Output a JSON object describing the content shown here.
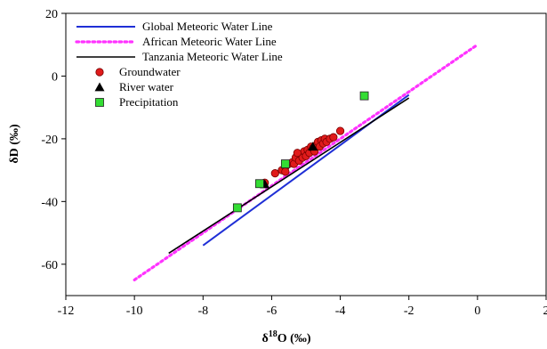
{
  "chart_data": {
    "type": "scatter",
    "xlabel_prefix": "δ",
    "xlabel_sup": "18",
    "xlabel_suffix": "O (‰)",
    "ylabel": "δD (‰)",
    "xlim": [
      -12,
      2
    ],
    "ylim": [
      -70,
      20
    ],
    "xticks": [
      -12,
      -10,
      -8,
      -6,
      -4,
      -2,
      0,
      2
    ],
    "yticks": [
      20,
      0,
      -20,
      -40,
      -60
    ],
    "grid": false,
    "legend_position": "top-left",
    "lines": [
      {
        "name": "Global Meteoric Water Line",
        "color": "#1f2fd6",
        "style": "solid",
        "x": [
          -8,
          -2
        ],
        "y": [
          -54,
          -6
        ]
      },
      {
        "name": "African Meteoric Water Line",
        "color": "#ff33ff",
        "style": "dotted",
        "x": [
          -10,
          0
        ],
        "y": [
          -65,
          10
        ]
      },
      {
        "name": "Tanzania Meteoric Water Line",
        "color": "#000000",
        "style": "solid",
        "x": [
          -9,
          -2
        ],
        "y": [
          -56.5,
          -7
        ]
      }
    ],
    "scatter": [
      {
        "name": "Groundwater",
        "marker": "circle",
        "color": "#e01b1b",
        "points": [
          [
            -6.2,
            -34
          ],
          [
            -5.9,
            -31
          ],
          [
            -5.7,
            -30
          ],
          [
            -5.6,
            -29
          ],
          [
            -5.5,
            -28
          ],
          [
            -5.4,
            -27.5
          ],
          [
            -5.35,
            -28
          ],
          [
            -5.3,
            -26
          ],
          [
            -5.2,
            -27
          ],
          [
            -5.15,
            -25
          ],
          [
            -5.1,
            -26
          ],
          [
            -5.05,
            -24
          ],
          [
            -5.0,
            -25.5
          ],
          [
            -4.95,
            -23.5
          ],
          [
            -4.9,
            -24.5
          ],
          [
            -4.85,
            -22.5
          ],
          [
            -4.8,
            -23
          ],
          [
            -4.75,
            -24
          ],
          [
            -4.7,
            -22
          ],
          [
            -4.65,
            -21
          ],
          [
            -4.6,
            -22.5
          ],
          [
            -4.55,
            -20.5
          ],
          [
            -4.5,
            -21.5
          ],
          [
            -4.45,
            -20
          ],
          [
            -4.4,
            -21
          ],
          [
            -4.3,
            -20
          ],
          [
            -4.2,
            -19.5
          ],
          [
            -4.0,
            -17.5
          ],
          [
            -5.6,
            -30.5
          ],
          [
            -5.25,
            -24.5
          ]
        ]
      },
      {
        "name": "River water",
        "marker": "triangle",
        "color": "#000000",
        "points": [
          [
            -6.2,
            -34.5
          ],
          [
            -4.8,
            -22.5
          ]
        ]
      },
      {
        "name": "Precipitation",
        "marker": "square",
        "color": "#33dd33",
        "points": [
          [
            -7.0,
            -42
          ],
          [
            -6.35,
            -34.3
          ],
          [
            -5.6,
            -28
          ],
          [
            -3.3,
            -6.3
          ]
        ]
      }
    ]
  }
}
